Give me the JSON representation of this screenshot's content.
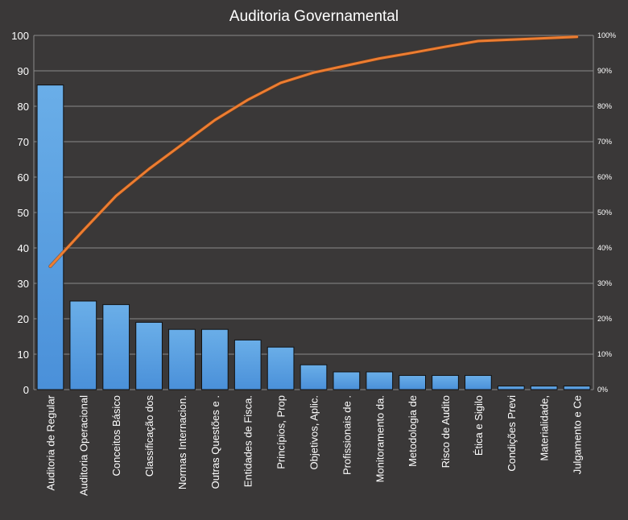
{
  "chart_data": {
    "type": "pareto",
    "title": "Auditoria Governamental",
    "categories": [
      "Auditoria de Regular",
      "Auditoria Operacional",
      "Conceitos Básico",
      "Classificação dos",
      "Normas Internacion.",
      "Outras Questões e .",
      "Entidades de Fisca.",
      "Princípios, Prop",
      "Objetivos, Aplic.",
      "Profissionais de .",
      "Monitoramento da.",
      "Metodologia de",
      "Risco de Audito",
      "Ética e Sigilo",
      "Condições Previ",
      "Materialidade,",
      "Julgamento e Ce"
    ],
    "series": [
      {
        "type": "bar",
        "values": [
          86,
          25,
          24,
          19,
          17,
          17,
          14,
          12,
          7,
          5,
          5,
          4,
          4,
          4,
          1,
          1,
          1
        ]
      },
      {
        "type": "line",
        "axis": "right",
        "values": [
          34.8,
          44.9,
          54.7,
          62.3,
          69.2,
          76.1,
          81.8,
          86.6,
          89.5,
          91.5,
          93.5,
          95.1,
          96.8,
          98.4,
          98.8,
          99.2,
          99.6
        ]
      }
    ],
    "y_left": {
      "min": 0,
      "max": 100,
      "ticks": [
        "0",
        "10",
        "20",
        "30",
        "40",
        "50",
        "60",
        "70",
        "80",
        "90",
        "100"
      ]
    },
    "y_right": {
      "min": 0,
      "max": 100,
      "ticks": [
        "0%",
        "10%",
        "20%",
        "30%",
        "40%",
        "50%",
        "60%",
        "70%",
        "80%",
        "90%",
        "100%"
      ]
    },
    "grid": true,
    "legend": "none",
    "colors": {
      "background": "#3a3838",
      "bar": "#4a90d9",
      "bar_top": "#6aaee8",
      "line": "#ed7d31",
      "grid": "#8a8a8a",
      "text": "#ffffff"
    }
  }
}
